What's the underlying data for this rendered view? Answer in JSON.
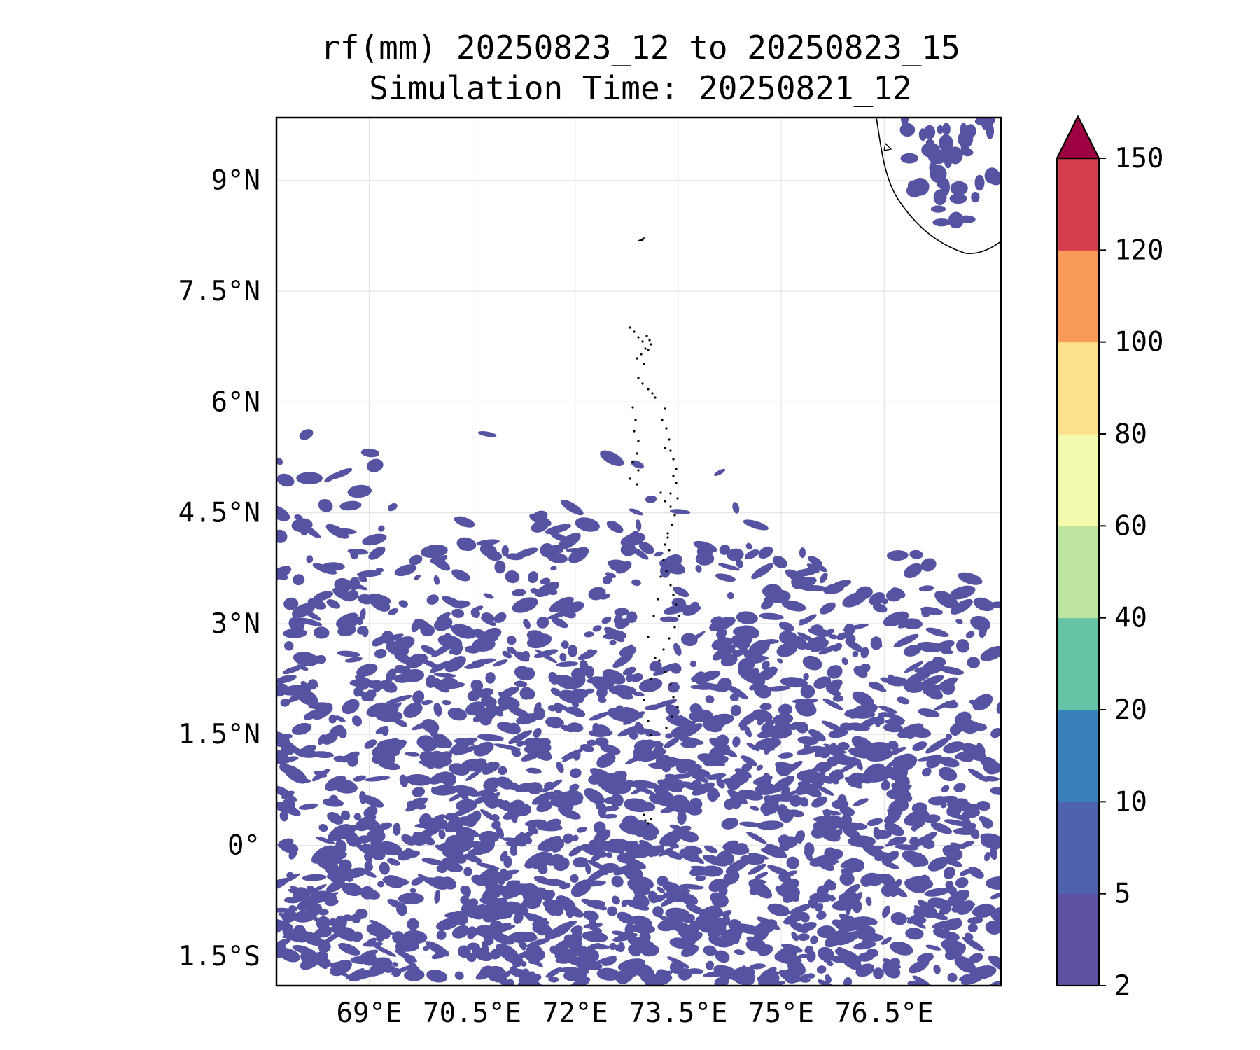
{
  "title_line1": "rf(mm) 20250823_12 to 20250823_15",
  "title_line2": "Simulation Time: 20250821_12",
  "map": {
    "lon_range": [
      67.65,
      78.2
    ],
    "lat_range": [
      -1.9,
      9.85
    ],
    "lon_ticks": [
      {
        "value": 69.0,
        "label": "69°E"
      },
      {
        "value": 70.5,
        "label": "70.5°E"
      },
      {
        "value": 72.0,
        "label": "72°E"
      },
      {
        "value": 73.5,
        "label": "73.5°E"
      },
      {
        "value": 75.0,
        "label": "75°E"
      },
      {
        "value": 76.5,
        "label": "76.5°E"
      }
    ],
    "lat_ticks": [
      {
        "value": 9.0,
        "label": "9°N"
      },
      {
        "value": 7.5,
        "label": "7.5°N"
      },
      {
        "value": 6.0,
        "label": "6°N"
      },
      {
        "value": 4.5,
        "label": "4.5°N"
      },
      {
        "value": 3.0,
        "label": "3°N"
      },
      {
        "value": 1.5,
        "label": "1.5°N"
      },
      {
        "value": 0.0,
        "label": "0°"
      },
      {
        "value": -1.5,
        "label": "1.5°S"
      }
    ],
    "gridlines": true,
    "rain_color": "#5553a2",
    "coast_color": "#000000"
  },
  "colorbar": {
    "levels": [
      {
        "label": "2",
        "color": "#5e4fa2"
      },
      {
        "label": "5",
        "color": "#4f62ad"
      },
      {
        "label": "10",
        "color": "#3880b9"
      },
      {
        "label": "20",
        "color": "#65c3a6"
      },
      {
        "label": "40",
        "color": "#bde3a0"
      },
      {
        "label": "60",
        "color": "#f3faad"
      },
      {
        "label": "80",
        "color": "#fde08b"
      },
      {
        "label": "100",
        "color": "#f99b58"
      },
      {
        "label": "120",
        "color": "#d53e4f"
      },
      {
        "label": "150",
        "color": "#9e0142"
      }
    ],
    "extend": "max"
  }
}
